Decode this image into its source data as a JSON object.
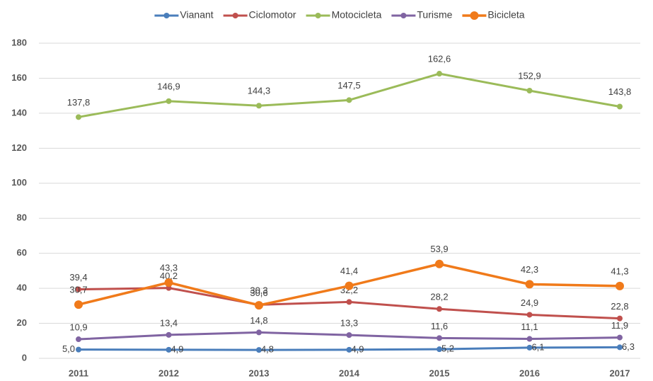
{
  "chart_data": {
    "type": "line",
    "categories": [
      "2011",
      "2012",
      "2013",
      "2014",
      "2015",
      "2016",
      "2017"
    ],
    "ylim": [
      0,
      180
    ],
    "yticks": [
      0,
      20,
      40,
      60,
      80,
      100,
      120,
      140,
      160,
      180
    ],
    "grid": true,
    "legend": "top",
    "series": [
      {
        "name": "Vianant",
        "color": "#4a7ebb",
        "values": [
          5.0,
          4.9,
          4.8,
          4.9,
          5.2,
          6.1,
          6.3
        ],
        "value_labels": [
          "5,0",
          "4,9",
          "4,8",
          "4,9",
          "5,2",
          "6,1",
          "6,3"
        ]
      },
      {
        "name": "Ciclomotor",
        "color": "#c0504d",
        "values": [
          39.4,
          40.2,
          30.6,
          32.2,
          28.2,
          24.9,
          22.8
        ],
        "value_labels": [
          "39,4",
          "40,2",
          "30,6",
          "32,2",
          "28,2",
          "24,9",
          "22,8"
        ]
      },
      {
        "name": "Motocicleta",
        "color": "#9bbb59",
        "values": [
          137.8,
          146.9,
          144.3,
          147.5,
          162.6,
          152.9,
          143.8
        ],
        "value_labels": [
          "137,8",
          "146,9",
          "144,3",
          "147,5",
          "162,6",
          "152,9",
          "143,8"
        ]
      },
      {
        "name": "Turisme",
        "color": "#8064a2",
        "values": [
          10.9,
          13.4,
          14.8,
          13.3,
          11.6,
          11.1,
          11.9
        ],
        "value_labels": [
          "10,9",
          "13,4",
          "14,8",
          "13,3",
          "11,6",
          "11,1",
          "11,9"
        ]
      },
      {
        "name": "Bicicleta",
        "color": "#f07a1a",
        "values": [
          30.7,
          43.3,
          30.3,
          41.4,
          53.9,
          42.3,
          41.3
        ],
        "value_labels": [
          "30,7",
          "43,3",
          "30,3",
          "41,4",
          "53,9",
          "42,3",
          "41,3"
        ]
      }
    ]
  }
}
